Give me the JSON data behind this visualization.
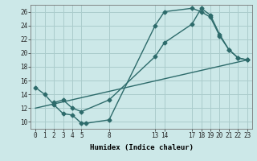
{
  "xlabel": "Humidex (Indice chaleur)",
  "background_color": "#cce8e8",
  "grid_color": "#aacccc",
  "line_color": "#2d6b6b",
  "xlim": [
    -0.5,
    23.5
  ],
  "ylim": [
    9,
    27
  ],
  "xticks": [
    0,
    1,
    2,
    3,
    4,
    5,
    8,
    13,
    14,
    17,
    18,
    19,
    20,
    21,
    22,
    23
  ],
  "yticks": [
    10,
    12,
    14,
    16,
    18,
    20,
    22,
    24,
    26
  ],
  "line1_x": [
    0,
    1,
    2,
    3,
    4,
    5,
    5.5,
    8,
    13,
    14,
    17,
    18,
    19,
    20,
    21,
    22,
    23
  ],
  "line1_y": [
    15,
    14,
    12.5,
    11.2,
    11.0,
    9.8,
    9.8,
    10.3,
    24,
    26,
    26.5,
    26,
    25.2,
    22.5,
    20.5,
    19.3,
    19
  ],
  "line2_x": [
    2,
    3,
    4,
    5,
    8,
    13,
    14,
    17,
    18,
    19,
    20,
    21,
    22,
    23
  ],
  "line2_y": [
    12.8,
    13.2,
    12.0,
    11.5,
    13.2,
    19.5,
    21.5,
    24.2,
    26.5,
    25.5,
    22.7,
    20.5,
    19.3,
    19
  ],
  "line3_x": [
    0,
    23
  ],
  "line3_y": [
    12,
    19
  ]
}
